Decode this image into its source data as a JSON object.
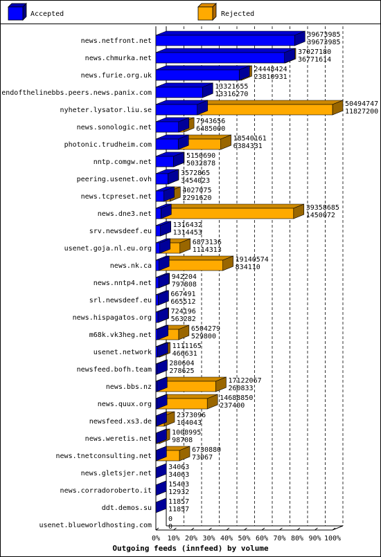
{
  "chart_data": {
    "type": "bar",
    "orientation": "horizontal",
    "stacking": "overlay",
    "xlabel": "Outgoing feeds (innfeed) by volume",
    "x_ticks": [
      "0%",
      "10%",
      "20%",
      "30%",
      "40%",
      "50%",
      "60%",
      "70%",
      "80%",
      "90%",
      "100%"
    ],
    "xlim": [
      0,
      100
    ],
    "grid": true,
    "legend_position": "top",
    "series": [
      {
        "name": "Accepted",
        "color": "#0000ff"
      },
      {
        "name": "Rejected",
        "color": "#ffaa00"
      }
    ],
    "categories": [
      "news.netfront.net",
      "news.chmurka.net",
      "news.furie.org.uk",
      "endofthelinebbs.peers.news.panix.com",
      "nyheter.lysator.liu.se",
      "news.sonologic.net",
      "photonic.trudheim.com",
      "nntp.comgw.net",
      "peering.usenet.ovh",
      "news.tcpreset.net",
      "news.dne3.net",
      "srv.newsdeef.eu",
      "usenet.goja.nl.eu.org",
      "news.nk.ca",
      "news.nntp4.net",
      "srl.newsdeef.eu",
      "news.hispagatos.org",
      "m68k.vk3heg.net",
      "usenet.network",
      "newsfeed.bofh.team",
      "news.bbs.nz",
      "news.quux.org",
      "newsfeed.xs3.de",
      "news.weretis.net",
      "news.tnetconsulting.net",
      "news.gletsjer.net",
      "news.corradoroberto.it",
      "ddt.demos.su",
      "usenet.blueworldhosting.com"
    ],
    "offered": [
      "39673985",
      "37027180",
      "24448424",
      "13321655",
      "50494747",
      "7943656",
      "18540161",
      "5150690",
      "3572865",
      "4027075",
      "39358685",
      "1316432",
      "6873136",
      "19140574",
      "942204",
      "667491",
      "724196",
      "6504279",
      "1111165",
      "280604",
      "17122067",
      "14688850",
      "2373096",
      "1008995",
      "6730880",
      "34063",
      "15403",
      "11857",
      "0"
    ],
    "accepted": [
      "39673985",
      "36771614",
      "23810931",
      "13316270",
      "11827200",
      "6485000",
      "6384331",
      "5032878",
      "3454023",
      "2291620",
      "1450072",
      "1314453",
      "1114313",
      "834110",
      "797808",
      "665512",
      "563282",
      "529800",
      "466631",
      "278625",
      "260833",
      "237400",
      "104043",
      "98708",
      "73067",
      "34063",
      "12932",
      "11857",
      "0"
    ]
  }
}
